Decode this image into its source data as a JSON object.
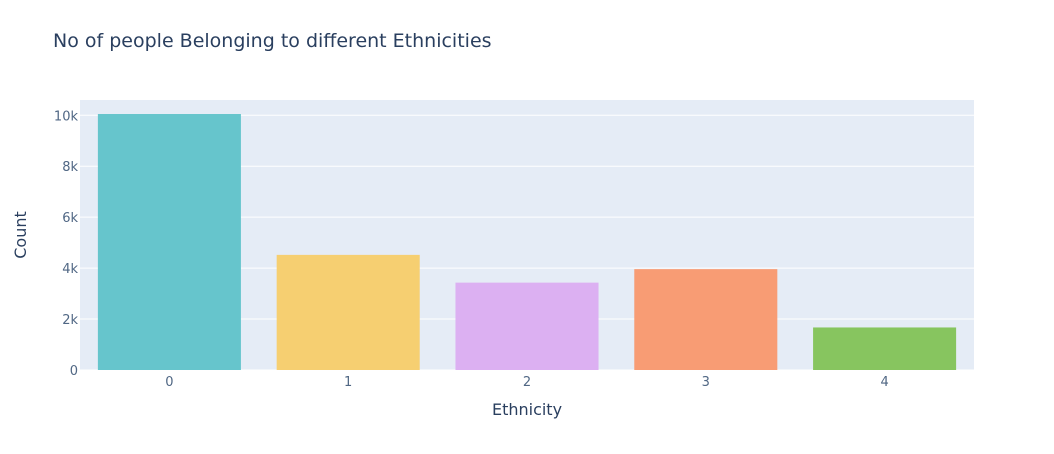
{
  "chart_data": {
    "type": "bar",
    "title": "No of people Belonging to different Ethnicities",
    "xlabel": "Ethnicity",
    "ylabel": "Count",
    "categories": [
      "0",
      "1",
      "2",
      "3",
      "4"
    ],
    "values": [
      10050,
      4520,
      3430,
      3960,
      1670
    ],
    "colors": [
      "#66c5cc",
      "#f6cf71",
      "#dcb0f2",
      "#f89c74",
      "#87c55f"
    ],
    "ylim": [
      0,
      10600
    ],
    "yticks": [
      {
        "value": 0,
        "label": "0"
      },
      {
        "value": 2000,
        "label": "2k"
      },
      {
        "value": 4000,
        "label": "4k"
      },
      {
        "value": 6000,
        "label": "6k"
      },
      {
        "value": 8000,
        "label": "8k"
      },
      {
        "value": 10000,
        "label": "10k"
      }
    ],
    "grid": true,
    "plot_bg": "#e5ecf6",
    "text_color": "#2a3f5f",
    "tick_color": "#506784"
  }
}
